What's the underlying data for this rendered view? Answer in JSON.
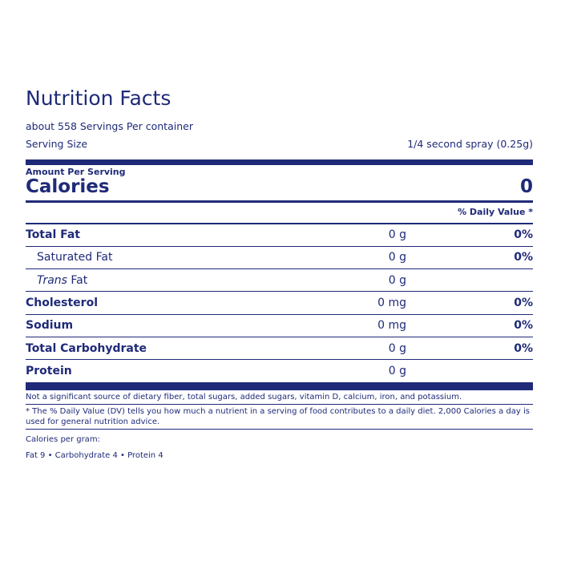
{
  "label": {
    "title": "Nutrition Facts",
    "servings_per_container": "about 558 Servings Per container",
    "serving_size_label": "Serving Size",
    "serving_size_value": "1/4 second spray (0.25g)",
    "amount_per_serving": "Amount Per Serving",
    "calories_label": "Calories",
    "calories_value": "0",
    "daily_value_header": "% Daily Value *",
    "nutrients": [
      {
        "name": "Total Fat",
        "amount": "0 g",
        "dv": "0%"
      },
      {
        "name": "Saturated Fat",
        "amount": "0 g",
        "dv": "0%"
      },
      {
        "name_italic": "Trans",
        "name_rest": " Fat",
        "amount": "0 g",
        "dv": ""
      },
      {
        "name": "Cholesterol",
        "amount": "0 mg",
        "dv": "0%"
      },
      {
        "name": "Sodium",
        "amount": "0 mg",
        "dv": "0%"
      },
      {
        "name": "Total Carbohydrate",
        "amount": "0 g",
        "dv": "0%"
      },
      {
        "name": "Protein",
        "amount": "0 g",
        "dv": ""
      }
    ],
    "not_significant_note": "Not a significant source of dietary fiber, total sugars, added sugars, vitamin D, calcium, iron, and potassium.",
    "dv_footnote": "* The % Daily Value (DV) tells you how much a nutrient in a serving of food contributes to a daily diet. 2,000 Calories a day is used for general nutrition advice.",
    "calories_per_gram_label": "Calories per gram:",
    "calories_per_gram_values": "Fat 9 • Carbohydrate 4 • Protein 4"
  }
}
